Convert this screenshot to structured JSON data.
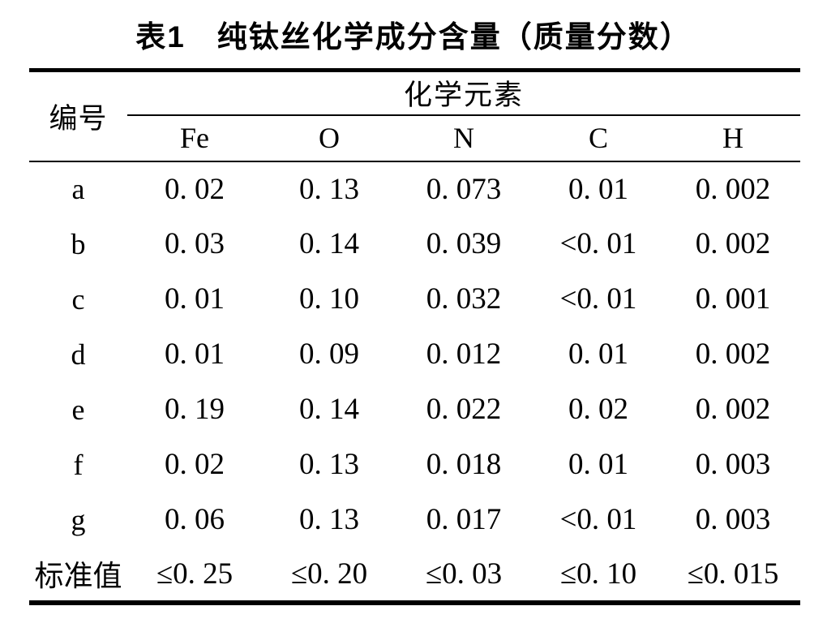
{
  "page": {
    "background_color": "#ffffff",
    "text_color": "#000000"
  },
  "title": "表1　纯钛丝化学成分含量（质量分数）",
  "table": {
    "corner_header": "编号",
    "group_header": "化学元素",
    "element_headers": [
      "Fe",
      "O",
      "N",
      "C",
      "H"
    ],
    "rows": [
      {
        "label": "a",
        "values": [
          "0. 02",
          "0. 13",
          "0. 073",
          "0. 01",
          "0. 002"
        ]
      },
      {
        "label": "b",
        "values": [
          "0. 03",
          "0. 14",
          "0. 039",
          "<0. 01",
          "0. 002"
        ]
      },
      {
        "label": "c",
        "values": [
          "0. 01",
          "0. 10",
          "0. 032",
          "<0. 01",
          "0. 001"
        ]
      },
      {
        "label": "d",
        "values": [
          "0. 01",
          "0. 09",
          "0. 012",
          "0. 01",
          "0. 002"
        ]
      },
      {
        "label": "e",
        "values": [
          "0. 19",
          "0. 14",
          "0. 022",
          "0. 02",
          "0. 002"
        ]
      },
      {
        "label": "f",
        "values": [
          "0. 02",
          "0. 13",
          "0. 018",
          "0. 01",
          "0. 003"
        ]
      },
      {
        "label": "g",
        "values": [
          "0. 06",
          "0. 13",
          "0. 017",
          "<0. 01",
          "0. 003"
        ]
      },
      {
        "label": "标准值",
        "values": [
          "≤0. 25",
          "≤0. 20",
          "≤0. 03",
          "≤0. 10",
          "≤0. 015"
        ]
      }
    ]
  }
}
